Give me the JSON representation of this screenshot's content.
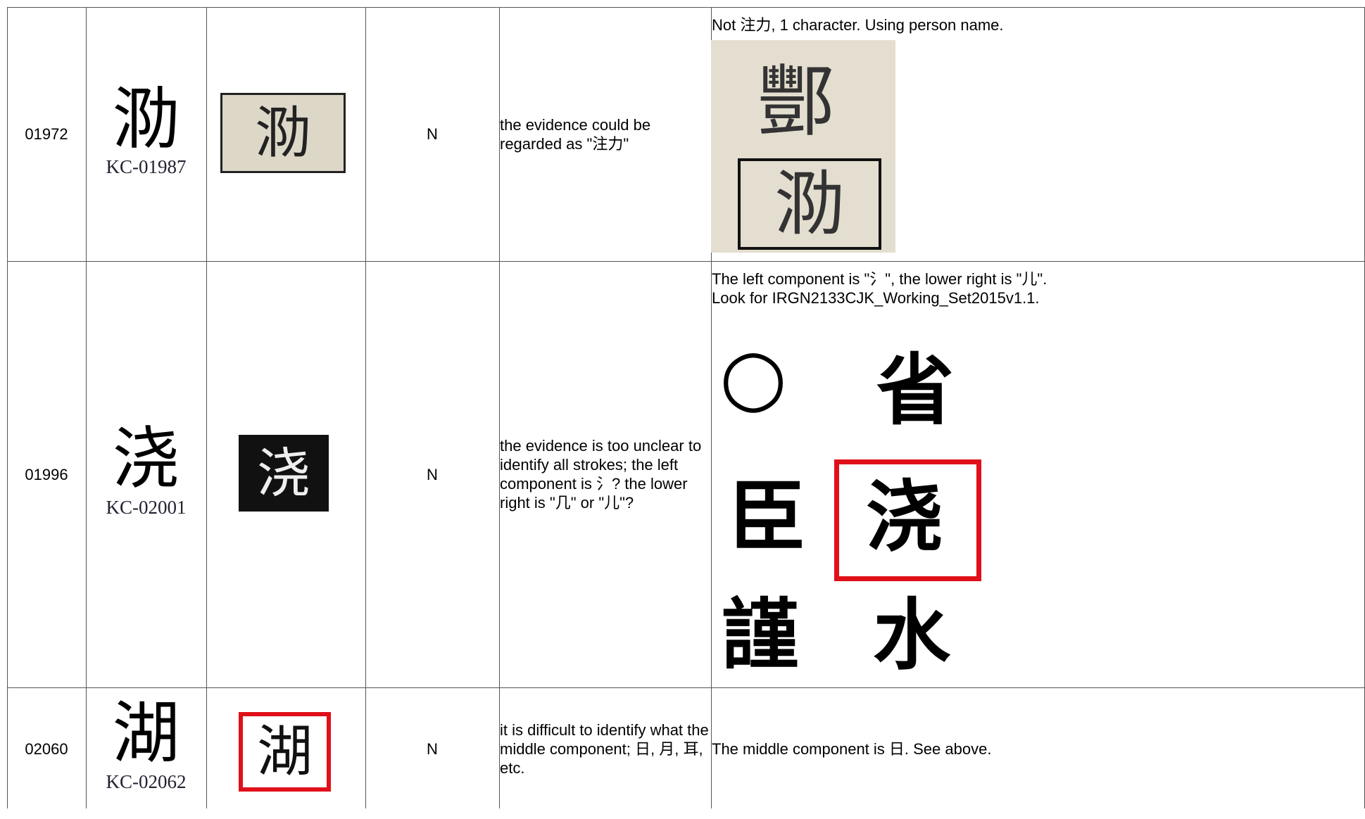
{
  "table": {
    "rows": [
      {
        "id": "01972",
        "glyph": "泐",
        "source": "KC-01987",
        "decision": "N",
        "comment": "the evidence could be regarded as \"注力\"",
        "response": [
          "Not 注力, 1 character. Using person name."
        ],
        "response_image_chars": [
          "酆",
          "泐"
        ]
      },
      {
        "id": "01996",
        "glyph": "浇",
        "source": "KC-02001",
        "decision": "N",
        "comment": "the evidence is too unclear to identify all strokes; the left component is 氵? the lower right is \"几\" or \"儿\"?",
        "response": [
          "The left component is \"氵\", the lower right is \"儿\".",
          "Look for IRGN2133CJK_Working_Set2015v1.1."
        ],
        "response_image_chars": [
          "○",
          "省",
          "臣",
          "浇",
          "謹",
          "水"
        ]
      },
      {
        "id": "02060",
        "glyph": "湖",
        "source": "KC-02062",
        "decision": "N",
        "comment": "it is difficult to identify what the middle component; 日, 月, 耳, etc.",
        "response": [
          "The middle component is 日. See above."
        ],
        "response_image_chars": []
      }
    ]
  }
}
